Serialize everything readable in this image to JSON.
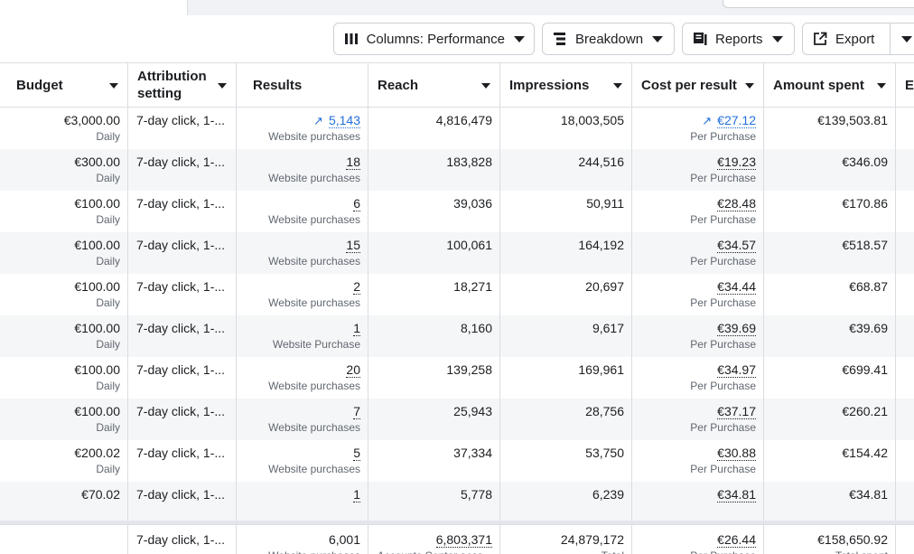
{
  "toolbar": {
    "columns_label": "Columns: Performance",
    "breakdown_label": "Breakdown",
    "reports_label": "Reports",
    "export_label": "Export"
  },
  "columns": {
    "budget": "Budget",
    "attribution": "Attribution setting",
    "results": "Results",
    "reach": "Reach",
    "impressions": "Impressions",
    "cost": "Cost per result",
    "spent": "Amount spent",
    "next": "E"
  },
  "rows": [
    {
      "budget": "€3,000.00",
      "budget_type": "Daily",
      "attribution": "7-day click, 1-...",
      "results": "5,143",
      "results_label": "Website purchases",
      "reach": "4,816,479",
      "impressions": "18,003,505",
      "cost": "€27.12",
      "cost_label": "Per Purchase",
      "spent": "€139,503.81"
    },
    {
      "budget": "€300.00",
      "budget_type": "Daily",
      "attribution": "7-day click, 1-...",
      "results": "18",
      "results_label": "Website purchases",
      "reach": "183,828",
      "impressions": "244,516",
      "cost": "€19.23",
      "cost_label": "Per Purchase",
      "spent": "€346.09"
    },
    {
      "budget": "€100.00",
      "budget_type": "Daily",
      "attribution": "7-day click, 1-...",
      "results": "6",
      "results_label": "Website purchases",
      "reach": "39,036",
      "impressions": "50,911",
      "cost": "€28.48",
      "cost_label": "Per Purchase",
      "spent": "€170.86"
    },
    {
      "budget": "€100.00",
      "budget_type": "Daily",
      "attribution": "7-day click, 1-...",
      "results": "15",
      "results_label": "Website purchases",
      "reach": "100,061",
      "impressions": "164,192",
      "cost": "€34.57",
      "cost_label": "Per Purchase",
      "spent": "€518.57"
    },
    {
      "budget": "€100.00",
      "budget_type": "Daily",
      "attribution": "7-day click, 1-...",
      "results": "2",
      "results_label": "Website purchases",
      "reach": "18,271",
      "impressions": "20,697",
      "cost": "€34.44",
      "cost_label": "Per Purchase",
      "spent": "€68.87"
    },
    {
      "budget": "€100.00",
      "budget_type": "Daily",
      "attribution": "7-day click, 1-...",
      "results": "1",
      "results_label": "Website Purchase",
      "reach": "8,160",
      "impressions": "9,617",
      "cost": "€39.69",
      "cost_label": "Per Purchase",
      "spent": "€39.69"
    },
    {
      "budget": "€100.00",
      "budget_type": "Daily",
      "attribution": "7-day click, 1-...",
      "results": "20",
      "results_label": "Website purchases",
      "reach": "139,258",
      "impressions": "169,961",
      "cost": "€34.97",
      "cost_label": "Per Purchase",
      "spent": "€699.41"
    },
    {
      "budget": "€100.00",
      "budget_type": "Daily",
      "attribution": "7-day click, 1-...",
      "results": "7",
      "results_label": "Website purchases",
      "reach": "25,943",
      "impressions": "28,756",
      "cost": "€37.17",
      "cost_label": "Per Purchase",
      "spent": "€260.21"
    },
    {
      "budget": "€200.02",
      "budget_type": "Daily",
      "attribution": "7-day click, 1-...",
      "results": "5",
      "results_label": "Website purchases",
      "reach": "37,334",
      "impressions": "53,750",
      "cost": "€30.88",
      "cost_label": "Per Purchase",
      "spent": "€154.42"
    },
    {
      "budget": "€70.02",
      "budget_type": "",
      "attribution": "7-day click, 1-...",
      "results": "1",
      "results_label": "",
      "reach": "5,778",
      "impressions": "6,239",
      "cost": "€34.81",
      "cost_label": "",
      "spent": "€34.81"
    }
  ],
  "totals": {
    "attribution": "7-day click, 1-...",
    "results": "6,001",
    "results_label": "Website purchases",
    "reach": "6,803,371",
    "reach_label": "Accounts Center acco...",
    "impressions": "24,879,172",
    "impressions_label": "Total",
    "cost": "€26.44",
    "cost_label": "Per Purchase",
    "spent": "€158,650.92",
    "spent_label": "Total spent"
  },
  "colors": {
    "link": "#216fdb",
    "alt_row": "#f5f6f7",
    "border": "#dadde1"
  }
}
